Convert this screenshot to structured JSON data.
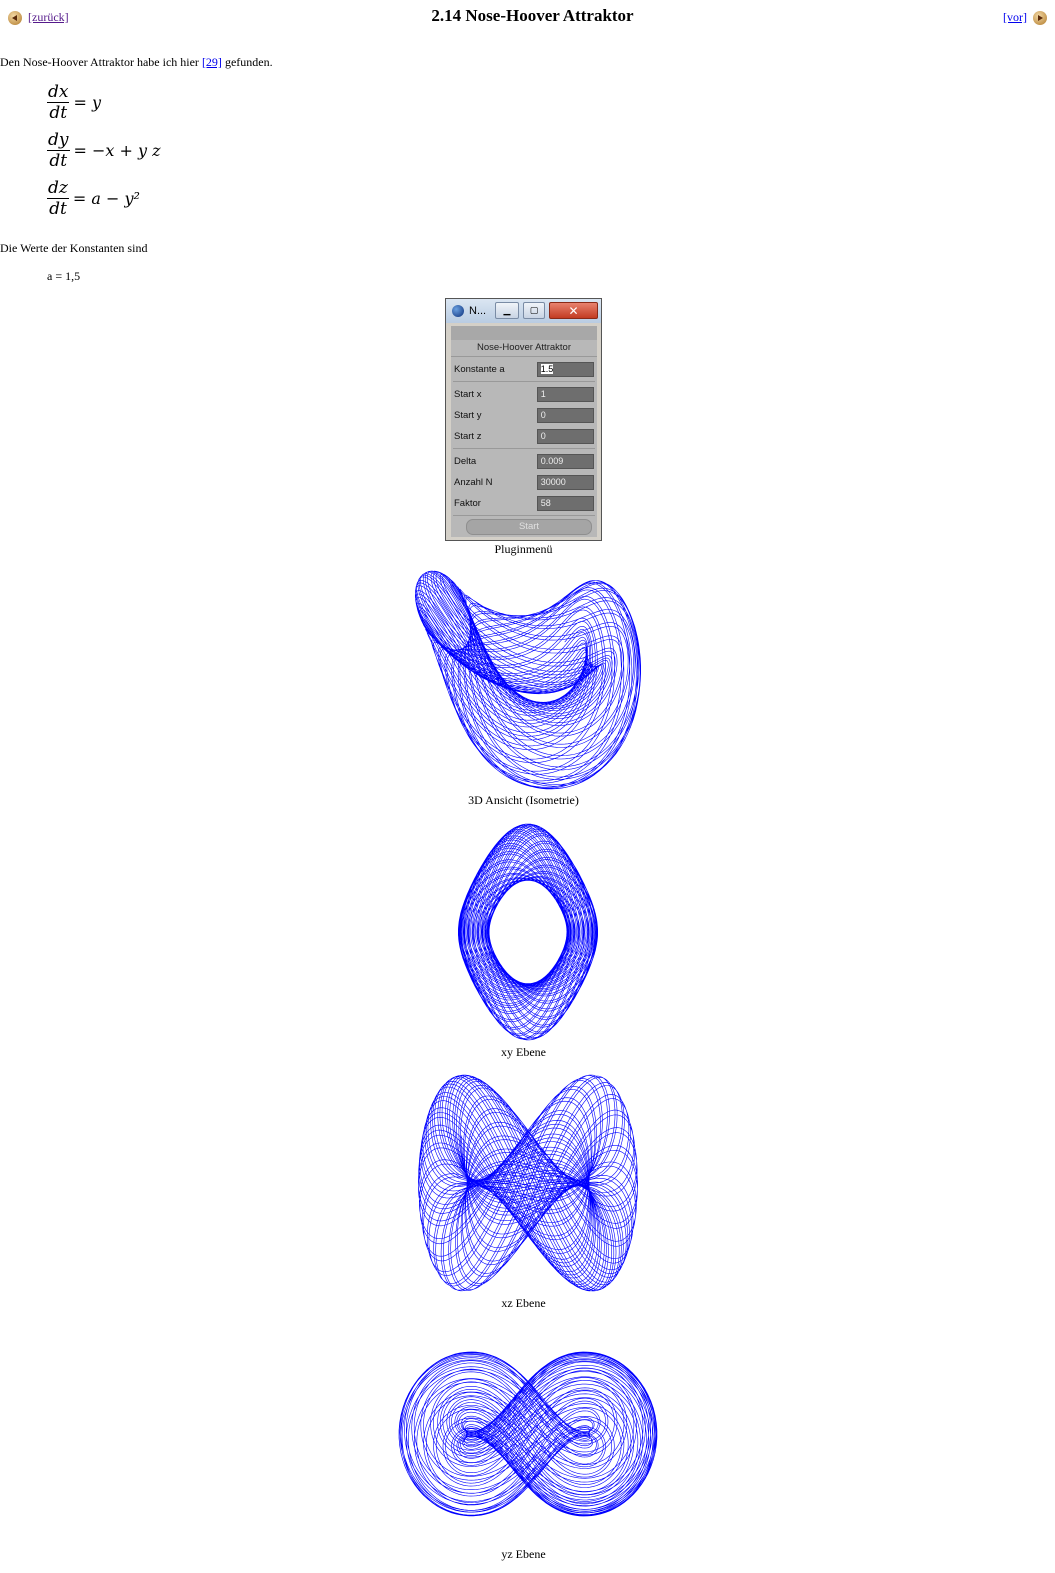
{
  "nav": {
    "back_label": "[zurück]",
    "forward_label": "[vor]"
  },
  "title": "2.14 Nose-Hoover Attraktor",
  "intro": {
    "before": "Den Nose-Hoover Attraktor habe ich hier ",
    "link": "[29]",
    "after": " gefunden."
  },
  "equations": [
    {
      "num": "dx",
      "den": "dt",
      "rhs": "= y"
    },
    {
      "num": "dy",
      "den": "dt",
      "rhs": "= −x + y z"
    },
    {
      "num": "dz",
      "den": "dt",
      "rhs": "= a − y²"
    }
  ],
  "constants_text": "Die Werte der Konstanten sind",
  "constant_a": "a = 1,5",
  "plugin": {
    "window_title": "N...",
    "header": "Nose-Hoover Attraktor",
    "fields": [
      {
        "label": "Konstante a",
        "value": "1.5"
      },
      {
        "label": "Start x",
        "value": "1"
      },
      {
        "label": "Start y",
        "value": "0"
      },
      {
        "label": "Start z",
        "value": "0"
      },
      {
        "label": "Delta",
        "value": "0.009"
      },
      {
        "label": "Anzahl N",
        "value": "30000"
      },
      {
        "label": "Faktor",
        "value": "58"
      }
    ],
    "start_label": "Start"
  },
  "captions": {
    "plugin": "Pluginmenü",
    "iso": "3D Ansicht (Isometrie)",
    "xy": "xy Ebene",
    "xz": "xz Ebene",
    "yz": "yz Ebene"
  },
  "colors": {
    "curve": "#0000ff",
    "link": "#0000ee",
    "visited": "#551a8b"
  },
  "icons": {
    "back": "left-arrow-icon",
    "forward": "right-arrow-icon"
  }
}
